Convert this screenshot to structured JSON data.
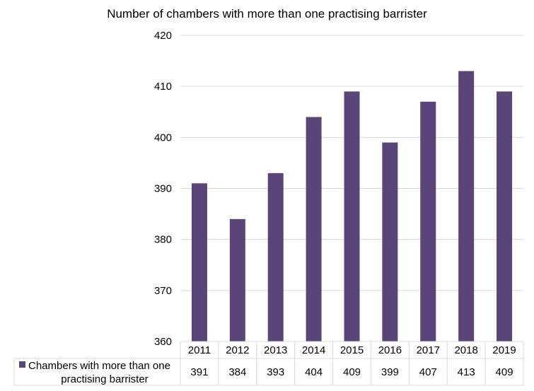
{
  "chart_data": {
    "type": "bar",
    "title": "Number of chambers with more than one practising barrister",
    "categories": [
      "2011",
      "2012",
      "2013",
      "2014",
      "2015",
      "2016",
      "2017",
      "2018",
      "2019"
    ],
    "series": [
      {
        "name": "Chambers with more than one practising barrister",
        "name_lines": [
          "Chambers with more than one",
          "practising barrister"
        ],
        "values": [
          391,
          384,
          393,
          404,
          409,
          399,
          407,
          413,
          409
        ],
        "color": "#5a4478"
      }
    ],
    "ylim": [
      360,
      420
    ],
    "yticks": [
      360,
      370,
      380,
      390,
      400,
      410,
      420
    ],
    "grid": true,
    "legend": "data-table",
    "xlabel": "",
    "ylabel": ""
  }
}
